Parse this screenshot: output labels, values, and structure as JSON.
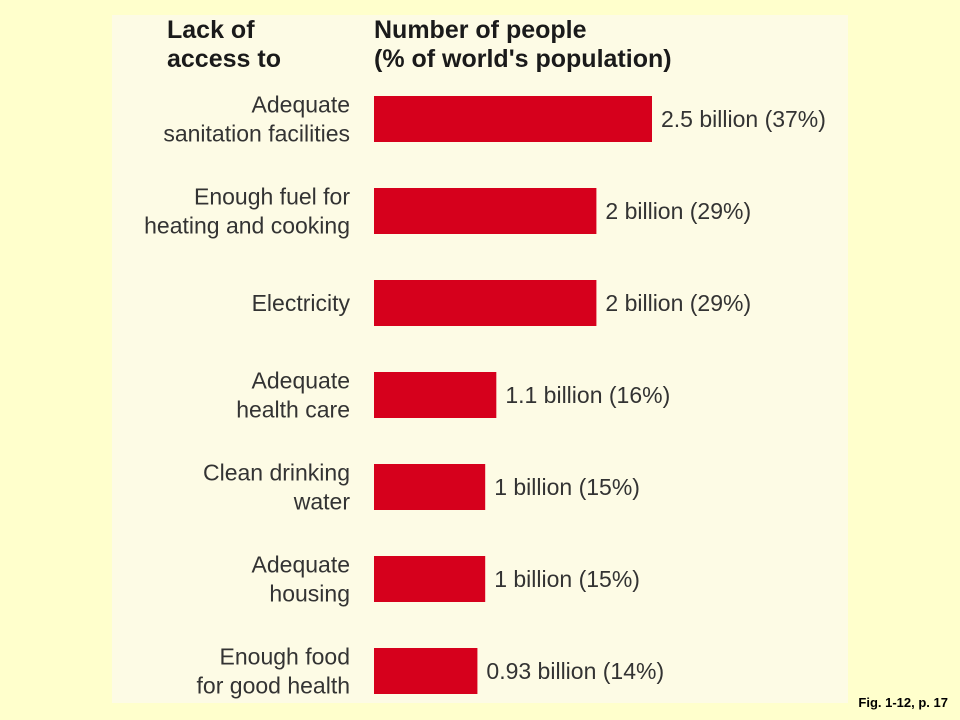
{
  "chart_data": {
    "type": "bar",
    "orientation": "horizontal",
    "category_header": "Lack of\naccess to",
    "value_header": "Number of people\n(% of world's population)",
    "categories": [
      "Adequate\nsanitation facilities",
      "Enough fuel for\nheating and cooking",
      "Electricity",
      "Adequate\nhealth care",
      "Clean drinking\nwater",
      "Adequate\nhousing",
      "Enough food\nfor good health"
    ],
    "values": [
      2.5,
      2,
      2,
      1.1,
      1,
      1,
      0.93
    ],
    "data_labels": [
      "2.5 billion (37%)",
      "2 billion (29%)",
      "2 billion (29%)",
      "1.1 billion (16%)",
      "1 billion (15%)",
      "1 billion (15%)",
      "0.93 billion (14%)"
    ],
    "unit": "billion",
    "xlim": [
      0,
      2.5
    ],
    "grid": false,
    "legend": "none",
    "bar_color": "#d6001c"
  },
  "caption": "Fig. 1-12, p. 17",
  "colors": {
    "background": "#ffffcc",
    "panel": "#fdfbe5",
    "text": "#333333"
  }
}
